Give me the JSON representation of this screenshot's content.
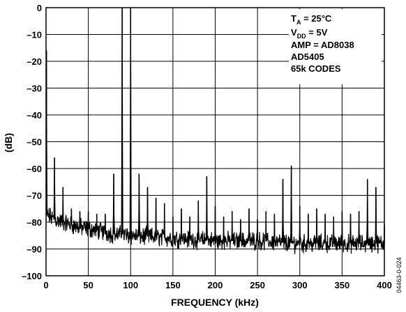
{
  "chart_data": {
    "type": "line",
    "xlabel": "FREQUENCY (kHz)",
    "ylabel": "(dB)",
    "xlim": [
      0,
      400
    ],
    "ylim": [
      -100,
      0
    ],
    "x_ticks": [
      0,
      50,
      100,
      150,
      200,
      250,
      300,
      350,
      400
    ],
    "y_ticks": [
      0,
      -10,
      -20,
      -30,
      -40,
      -50,
      -60,
      -70,
      -80,
      -90,
      -100
    ],
    "grid": true,
    "series": [
      {
        "color": "#000000",
        "noise_floor": [
          [
            0,
            -77
          ],
          [
            10,
            -79
          ],
          [
            20,
            -80
          ],
          [
            40,
            -82
          ],
          [
            60,
            -83
          ],
          [
            80,
            -84.5
          ],
          [
            100,
            -85
          ],
          [
            150,
            -86
          ],
          [
            200,
            -87
          ],
          [
            250,
            -87
          ],
          [
            300,
            -88
          ],
          [
            350,
            -88
          ],
          [
            400,
            -88
          ]
        ],
        "peaks": [
          {
            "x": 0.5,
            "y": -16
          },
          {
            "x": 10,
            "y": -56
          },
          {
            "x": 20,
            "y": -67
          },
          {
            "x": 30,
            "y": -75
          },
          {
            "x": 40,
            "y": -76
          },
          {
            "x": 50,
            "y": -76
          },
          {
            "x": 60,
            "y": -77
          },
          {
            "x": 70,
            "y": -77
          },
          {
            "x": 80,
            "y": -62
          },
          {
            "x": 90,
            "y": 0
          },
          {
            "x": 100,
            "y": 0
          },
          {
            "x": 110,
            "y": -62
          },
          {
            "x": 120,
            "y": -67
          },
          {
            "x": 130,
            "y": -71
          },
          {
            "x": 140,
            "y": -73
          },
          {
            "x": 150,
            "y": -78
          },
          {
            "x": 160,
            "y": -75
          },
          {
            "x": 170,
            "y": -78
          },
          {
            "x": 180,
            "y": -72
          },
          {
            "x": 190,
            "y": -63
          },
          {
            "x": 200,
            "y": -74
          },
          {
            "x": 210,
            "y": -78
          },
          {
            "x": 220,
            "y": -76
          },
          {
            "x": 230,
            "y": -79
          },
          {
            "x": 240,
            "y": -75
          },
          {
            "x": 250,
            "y": -79
          },
          {
            "x": 260,
            "y": -76
          },
          {
            "x": 270,
            "y": -77
          },
          {
            "x": 280,
            "y": -64
          },
          {
            "x": 290,
            "y": -59
          },
          {
            "x": 300,
            "y": -74
          },
          {
            "x": 310,
            "y": -77
          },
          {
            "x": 320,
            "y": -75
          },
          {
            "x": 330,
            "y": -77
          },
          {
            "x": 340,
            "y": -78
          },
          {
            "x": 350,
            "y": -76
          },
          {
            "x": 360,
            "y": -77
          },
          {
            "x": 370,
            "y": -76
          },
          {
            "x": 380,
            "y": -64
          },
          {
            "x": 390,
            "y": -67
          },
          {
            "x": 400,
            "y": -81
          }
        ]
      }
    ],
    "annotation": {
      "line1_main": "T",
      "line1_sub": "A",
      "line1_rest": " = 25°C",
      "line2_main": "V",
      "line2_sub": "DD",
      "line2_rest": " = 5V",
      "line3": "AMP = AD8038",
      "line4": "AD5405",
      "line5": "65k CODES",
      "placement": "top-right"
    }
  },
  "figure_id": "04463-0-024"
}
